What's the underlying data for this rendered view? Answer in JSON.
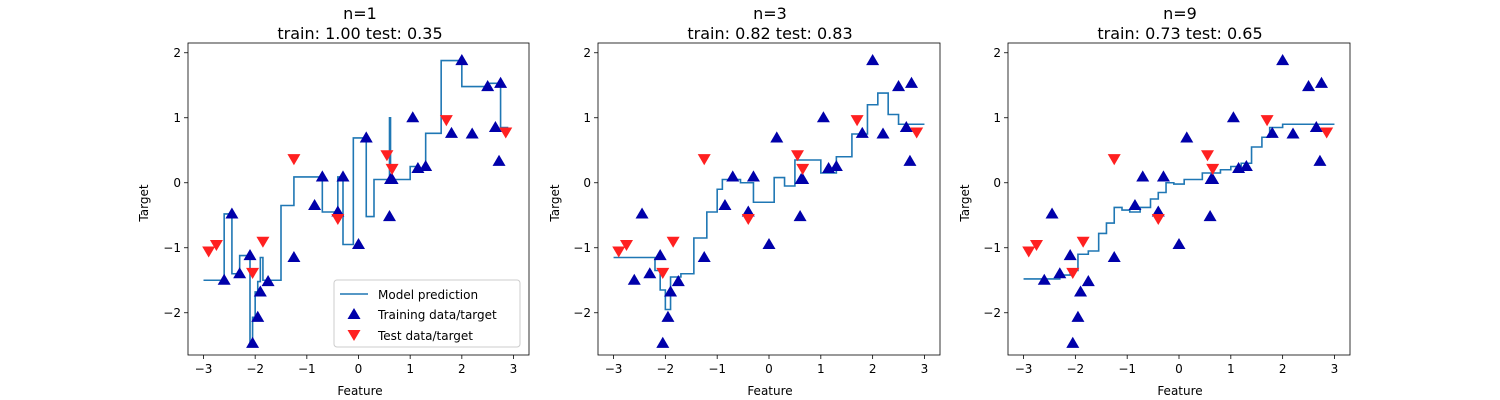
{
  "figure": {
    "colors": {
      "model": "#1f77b4",
      "train": "#0000aa",
      "test": "#ff2020"
    }
  },
  "legend": {
    "placement": "lower-right",
    "items": [
      "Model prediction",
      "Training data/target",
      "Test data/target"
    ]
  },
  "chart_data": [
    {
      "type": "line",
      "title": "n=1",
      "subtitle": "train: 1.00 test: 0.35",
      "xlabel": "Feature",
      "ylabel": "Target",
      "xlim": [
        -3.3,
        3.3
      ],
      "ylim": [
        -2.65,
        2.15
      ],
      "x_ticks": [
        "−3",
        "−2",
        "−1",
        "0",
        "1",
        "2",
        "3"
      ],
      "y_ticks": [
        "−2",
        "−1",
        "0",
        "1",
        "2"
      ],
      "legend": true,
      "series": [
        {
          "name": "Model prediction",
          "kind": "step",
          "x": [
            -3,
            -2.6,
            -2.45,
            -2.3,
            -2.1,
            -2.05,
            -2,
            -1.95,
            -1.9,
            -1.85,
            -1.8,
            -1.5,
            -1.25,
            -1.15,
            -0.85,
            -0.7,
            -0.4,
            -0.3,
            -0.1,
            0,
            0.15,
            0.3,
            0.5,
            0.6,
            0.62,
            0.65,
            0.7,
            0.85,
            1,
            1.15,
            1.3,
            1.45,
            1.6,
            1.8,
            2,
            2.2,
            2.5,
            2.65,
            2.75,
            2.9
          ],
          "y": [
            -1.5,
            -0.48,
            -1.4,
            -1.12,
            -2.47,
            -2.07,
            -1.68,
            -1.52,
            -1.15,
            -1.5,
            -1.5,
            -0.35,
            0.09,
            0.09,
            0.09,
            -0.45,
            0.09,
            -0.95,
            0.69,
            0.69,
            -0.52,
            0.05,
            0.05,
            1.0,
            0.22,
            0.05,
            0.05,
            0.05,
            0.25,
            0.22,
            0.76,
            0.76,
            1.88,
            1.88,
            1.48,
            1.48,
            1.53,
            1.53,
            0.85,
            0.85
          ]
        },
        {
          "name": "Training data/target",
          "kind": "marker-up",
          "x": [
            -2.6,
            -2.45,
            -2.3,
            -2.1,
            -2.05,
            -1.95,
            -1.9,
            -1.75,
            -1.25,
            -0.85,
            -0.7,
            -0.4,
            -0.3,
            0,
            0.15,
            0.6,
            0.62,
            0.65,
            1.05,
            1.15,
            1.3,
            1.8,
            2,
            2.2,
            2.5,
            2.75,
            2.72,
            2.65
          ],
          "y": [
            -1.5,
            -0.48,
            -1.4,
            -1.12,
            -2.47,
            -2.07,
            -1.68,
            -1.52,
            -1.15,
            -0.35,
            0.09,
            -0.45,
            0.09,
            -0.95,
            0.69,
            -0.52,
            0.05,
            0.05,
            1.0,
            0.22,
            0.25,
            0.76,
            1.88,
            0.75,
            1.48,
            1.53,
            0.33,
            0.85
          ]
        },
        {
          "name": "Test data/target",
          "kind": "marker-down",
          "x": [
            -2.9,
            -2.75,
            -2.05,
            -1.85,
            -1.25,
            -0.4,
            0.55,
            0.65,
            1.7,
            2.85
          ],
          "y": [
            -1.05,
            -0.95,
            -1.38,
            -0.9,
            0.37,
            -0.55,
            0.43,
            0.22,
            0.97,
            0.78
          ]
        }
      ]
    },
    {
      "type": "line",
      "title": "n=3",
      "subtitle": "train: 0.82 test: 0.83",
      "xlabel": "Feature",
      "ylabel": "Target",
      "xlim": [
        -3.3,
        3.3
      ],
      "ylim": [
        -2.65,
        2.15
      ],
      "x_ticks": [
        "−3",
        "−2",
        "−1",
        "0",
        "1",
        "2",
        "3"
      ],
      "y_ticks": [
        "−2",
        "−1",
        "0",
        "1",
        "2"
      ],
      "legend": false,
      "series": [
        {
          "name": "Model prediction",
          "kind": "step",
          "x": [
            -3,
            -2.4,
            -2.2,
            -2.1,
            -2.0,
            -1.9,
            -1.7,
            -1.45,
            -1.2,
            -1.0,
            -0.9,
            -0.55,
            -0.3,
            -0.15,
            0.1,
            0.3,
            0.5,
            0.9,
            1.0,
            1.3,
            1.45,
            1.6,
            1.9,
            2.1,
            2.3,
            2.5,
            2.8,
            3
          ],
          "y": [
            -1.15,
            -1.15,
            -1.35,
            -1.65,
            -1.95,
            -1.45,
            -1.4,
            -0.85,
            -0.45,
            -0.1,
            0.05,
            0.0,
            -0.3,
            -0.3,
            0.08,
            -0.05,
            0.35,
            0.35,
            0.15,
            0.4,
            0.4,
            0.75,
            1.2,
            1.38,
            1.05,
            0.9,
            0.9,
            0.9
          ]
        },
        {
          "name": "Training data/target",
          "kind": "marker-up",
          "x": [
            -2.6,
            -2.45,
            -2.3,
            -2.1,
            -2.05,
            -1.95,
            -1.9,
            -1.75,
            -1.25,
            -0.85,
            -0.7,
            -0.4,
            -0.3,
            0,
            0.15,
            0.6,
            0.62,
            0.65,
            1.05,
            1.15,
            1.3,
            1.8,
            2,
            2.2,
            2.5,
            2.75,
            2.72,
            2.65
          ],
          "y": [
            -1.5,
            -0.48,
            -1.4,
            -1.12,
            -2.47,
            -2.07,
            -1.68,
            -1.52,
            -1.15,
            -0.35,
            0.09,
            -0.45,
            0.09,
            -0.95,
            0.69,
            -0.52,
            0.05,
            0.05,
            1.0,
            0.22,
            0.25,
            0.76,
            1.88,
            0.75,
            1.48,
            1.53,
            0.33,
            0.85
          ]
        },
        {
          "name": "Test data/target",
          "kind": "marker-down",
          "x": [
            -2.9,
            -2.75,
            -2.05,
            -1.85,
            -1.25,
            -0.4,
            0.55,
            0.65,
            1.7,
            2.85
          ],
          "y": [
            -1.05,
            -0.95,
            -1.38,
            -0.9,
            0.37,
            -0.55,
            0.43,
            0.22,
            0.97,
            0.78
          ]
        }
      ]
    },
    {
      "type": "line",
      "title": "n=9",
      "subtitle": "train: 0.73 test: 0.65",
      "xlabel": "Feature",
      "ylabel": "Target",
      "xlim": [
        -3.3,
        3.3
      ],
      "ylim": [
        -2.65,
        2.15
      ],
      "x_ticks": [
        "−3",
        "−2",
        "−1",
        "0",
        "1",
        "2",
        "3"
      ],
      "y_ticks": [
        "−2",
        "−1",
        "0",
        "1",
        "2"
      ],
      "legend": false,
      "series": [
        {
          "name": "Model prediction",
          "kind": "step",
          "x": [
            -3,
            -2.5,
            -2.3,
            -2.1,
            -1.95,
            -1.75,
            -1.55,
            -1.4,
            -1.25,
            -1.1,
            -0.95,
            -0.75,
            -0.55,
            -0.4,
            -0.25,
            -0.1,
            0.1,
            0.25,
            0.45,
            0.6,
            0.8,
            1.0,
            1.2,
            1.4,
            1.6,
            1.75,
            2.0,
            3
          ],
          "y": [
            -1.48,
            -1.48,
            -1.42,
            -1.35,
            -1.1,
            -1.05,
            -0.78,
            -0.62,
            -0.38,
            -0.42,
            -0.45,
            -0.38,
            -0.25,
            -0.15,
            0.0,
            -0.02,
            0.05,
            0.05,
            0.15,
            0.15,
            0.2,
            0.25,
            0.3,
            0.55,
            0.7,
            0.85,
            0.9,
            0.9
          ]
        },
        {
          "name": "Training data/target",
          "kind": "marker-up",
          "x": [
            -2.6,
            -2.45,
            -2.3,
            -2.1,
            -2.05,
            -1.95,
            -1.9,
            -1.75,
            -1.25,
            -0.85,
            -0.7,
            -0.4,
            -0.3,
            0,
            0.15,
            0.6,
            0.62,
            0.65,
            1.05,
            1.15,
            1.3,
            1.8,
            2,
            2.2,
            2.5,
            2.75,
            2.72,
            2.65
          ],
          "y": [
            -1.5,
            -0.48,
            -1.4,
            -1.12,
            -2.47,
            -2.07,
            -1.68,
            -1.52,
            -1.15,
            -0.35,
            0.09,
            -0.45,
            0.09,
            -0.95,
            0.69,
            -0.52,
            0.05,
            0.05,
            1.0,
            0.22,
            0.25,
            0.76,
            1.88,
            0.75,
            1.48,
            1.53,
            0.33,
            0.85
          ]
        },
        {
          "name": "Test data/target",
          "kind": "marker-down",
          "x": [
            -2.9,
            -2.75,
            -2.05,
            -1.85,
            -1.25,
            -0.4,
            0.55,
            0.65,
            1.7,
            2.85
          ],
          "y": [
            -1.05,
            -0.95,
            -1.38,
            -0.9,
            0.37,
            -0.55,
            0.43,
            0.22,
            0.97,
            0.78
          ]
        }
      ]
    }
  ]
}
